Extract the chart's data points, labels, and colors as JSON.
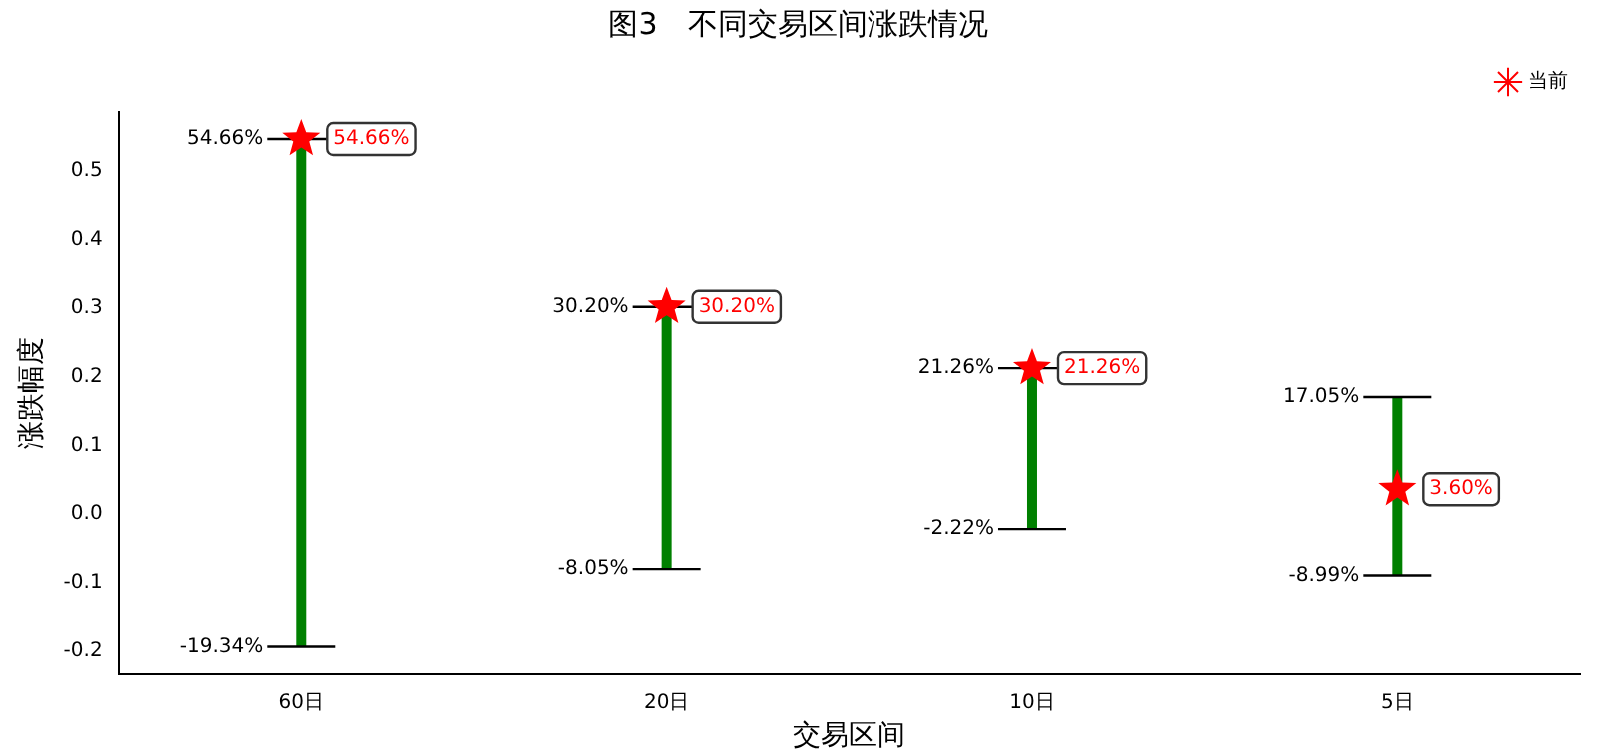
{
  "chart_data": {
    "type": "scatter",
    "title": "图3　不同交易区间涨跌情况",
    "xlabel": "交易区间",
    "ylabel": "涨跌幅度",
    "categories": [
      "60日",
      "20日",
      "10日",
      "5日"
    ],
    "ylim": [
      -0.234,
      0.586
    ],
    "yticks": [
      -0.2,
      -0.1,
      {
        "value": 0,
        "label": "0.0"
      },
      0.1,
      0.2,
      0.3,
      0.4,
      0.5
    ],
    "grid": false,
    "legend": "top right",
    "series": [
      {
        "name": "当前",
        "color": "#ff0000",
        "marker": "star",
        "x": [
          "60日",
          "20日",
          "10日",
          "5日"
        ],
        "values": [
          0.5466,
          0.302,
          0.2126,
          0.036
        ],
        "errors": [
          [
            -0.1934,
            0.5466
          ],
          [
            -0.0805,
            0.302
          ],
          [
            -0.0222,
            0.2126
          ],
          [
            -0.0899,
            0.1705
          ]
        ],
        "value_labels": [
          "54.66%",
          "30.20%",
          "21.26%",
          "3.60%"
        ]
      }
    ],
    "annotations": [
      {
        "text": "54.66%",
        "x": "60日",
        "y": 0.5466
      },
      {
        "text": "-19.34%",
        "x": "60日",
        "y": -0.1934
      },
      {
        "text": "30.20%",
        "x": "20日",
        "y": 0.302
      },
      {
        "text": "-8.05%",
        "x": "20日",
        "y": -0.0805
      },
      {
        "text": "21.26%",
        "x": "10日",
        "y": 0.2126
      },
      {
        "text": "-2.22%",
        "x": "10日",
        "y": -0.0222
      },
      {
        "text": "17.05%",
        "x": "5日",
        "y": 0.1705
      },
      {
        "text": "-8.99%",
        "x": "5日",
        "y": -0.0899
      }
    ]
  }
}
